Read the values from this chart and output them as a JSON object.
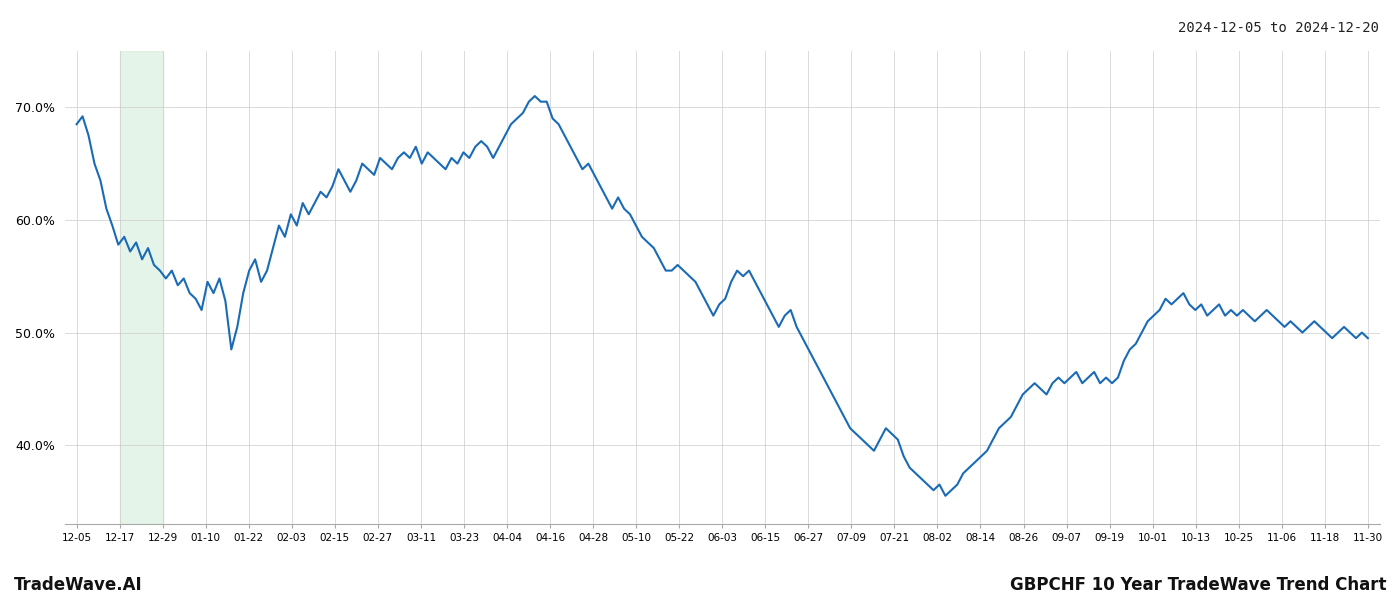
{
  "title_top_right": "2024-12-05 to 2024-12-20",
  "title_bottom_left": "TradeWave.AI",
  "title_bottom_right": "GBPCHF 10 Year TradeWave Trend Chart",
  "line_color": "#1a6bb5",
  "line_width": 1.5,
  "shaded_region_color": "#d4edda",
  "shaded_region_alpha": 0.6,
  "background_color": "#ffffff",
  "grid_color": "#cccccc",
  "ylim": [
    33,
    75
  ],
  "yticks": [
    40.0,
    50.0,
    60.0,
    70.0
  ],
  "xtick_labels": [
    "12-05",
    "12-17",
    "12-29",
    "01-10",
    "01-22",
    "02-03",
    "02-15",
    "02-27",
    "03-11",
    "03-23",
    "04-04",
    "04-16",
    "04-28",
    "05-10",
    "05-22",
    "06-03",
    "06-15",
    "06-27",
    "07-09",
    "07-21",
    "08-02",
    "08-14",
    "08-26",
    "09-07",
    "09-19",
    "10-01",
    "10-13",
    "10-25",
    "11-06",
    "11-18",
    "11-30"
  ],
  "values": [
    68.5,
    69.2,
    67.5,
    65.0,
    63.5,
    61.0,
    59.5,
    57.8,
    58.5,
    57.2,
    58.0,
    56.5,
    57.5,
    56.0,
    55.5,
    54.8,
    55.5,
    54.2,
    54.8,
    53.5,
    53.0,
    52.0,
    54.5,
    53.5,
    54.8,
    52.8,
    48.5,
    50.5,
    53.5,
    55.5,
    56.5,
    54.5,
    55.5,
    57.5,
    59.5,
    58.5,
    60.5,
    59.5,
    61.5,
    60.5,
    61.5,
    62.5,
    62.0,
    63.0,
    64.5,
    63.5,
    62.5,
    63.5,
    65.0,
    64.5,
    64.0,
    65.5,
    65.0,
    64.5,
    65.5,
    66.0,
    65.5,
    66.5,
    65.0,
    66.0,
    65.5,
    65.0,
    64.5,
    65.5,
    65.0,
    66.0,
    65.5,
    66.5,
    67.0,
    66.5,
    65.5,
    66.5,
    67.5,
    68.5,
    69.0,
    69.5,
    70.5,
    71.0,
    70.5,
    70.5,
    69.0,
    68.5,
    67.5,
    66.5,
    65.5,
    64.5,
    65.0,
    64.0,
    63.0,
    62.0,
    61.0,
    62.0,
    61.0,
    60.5,
    59.5,
    58.5,
    58.0,
    57.5,
    56.5,
    55.5,
    55.5,
    56.0,
    55.5,
    55.0,
    54.5,
    53.5,
    52.5,
    51.5,
    52.5,
    53.0,
    54.5,
    55.5,
    55.0,
    55.5,
    54.5,
    53.5,
    52.5,
    51.5,
    50.5,
    51.5,
    52.0,
    50.5,
    49.5,
    48.5,
    47.5,
    46.5,
    45.5,
    44.5,
    43.5,
    42.5,
    41.5,
    41.0,
    40.5,
    40.0,
    39.5,
    40.5,
    41.5,
    41.0,
    40.5,
    39.0,
    38.0,
    37.5,
    37.0,
    36.5,
    36.0,
    36.5,
    35.5,
    36.0,
    36.5,
    37.5,
    38.0,
    38.5,
    39.0,
    39.5,
    40.5,
    41.5,
    42.0,
    42.5,
    43.5,
    44.5,
    45.0,
    45.5,
    45.0,
    44.5,
    45.5,
    46.0,
    45.5,
    46.0,
    46.5,
    45.5,
    46.0,
    46.5,
    45.5,
    46.0,
    45.5,
    46.0,
    47.5,
    48.5,
    49.0,
    50.0,
    51.0,
    51.5,
    52.0,
    53.0,
    52.5,
    53.0,
    53.5,
    52.5,
    52.0,
    52.5,
    51.5,
    52.0,
    52.5,
    51.5,
    52.0,
    51.5,
    52.0,
    51.5,
    51.0,
    51.5,
    52.0,
    51.5,
    51.0,
    50.5,
    51.0,
    50.5,
    50.0,
    50.5,
    51.0,
    50.5,
    50.0,
    49.5,
    50.0,
    50.5,
    50.0,
    49.5,
    50.0,
    49.5
  ],
  "shaded_xstart_label_idx": 1,
  "shaded_xend_label_idx": 2
}
